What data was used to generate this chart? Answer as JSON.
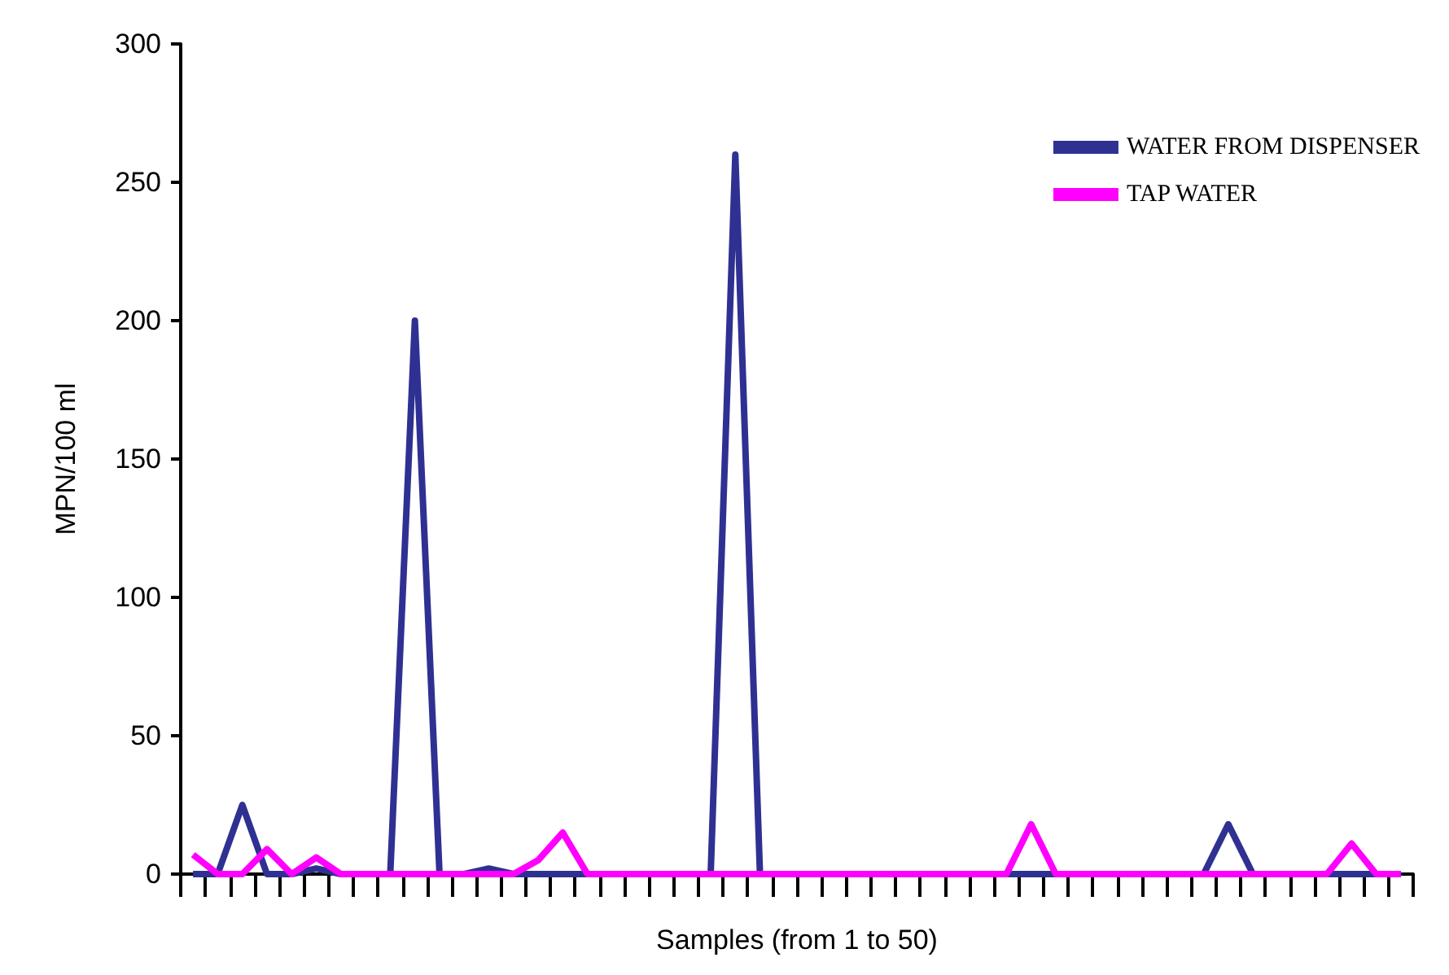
{
  "chart_data": {
    "type": "line",
    "xlabel": "Samples (from 1 to 50)",
    "ylabel": "MPN/100 ml",
    "categories": [
      null,
      null,
      null,
      null,
      null,
      null,
      null,
      null,
      null,
      null,
      null,
      null,
      null,
      null,
      null,
      null,
      null,
      null,
      null,
      null,
      null,
      null,
      null,
      null,
      null,
      null,
      null,
      null,
      null,
      null,
      null,
      null,
      null,
      null,
      null,
      null,
      null,
      null,
      null,
      null,
      null,
      null,
      null,
      null,
      null,
      null,
      null,
      null,
      null,
      null
    ],
    "series": [
      {
        "name": "WATER FROM DISPENSER",
        "color": "#2e3192",
        "values": [
          0,
          0,
          25,
          0,
          0,
          2,
          0,
          0,
          0,
          200,
          0,
          0,
          2,
          0,
          0,
          0,
          0,
          0,
          0,
          0,
          0,
          0,
          260,
          0,
          0,
          0,
          0,
          0,
          0,
          0,
          0,
          0,
          0,
          0,
          0,
          0,
          0,
          0,
          0,
          0,
          0,
          0,
          18,
          0,
          0,
          0,
          0,
          0,
          0,
          0
        ]
      },
      {
        "name": "TAP WATER",
        "color": "#ff00ff",
        "values": [
          7,
          0,
          0,
          9,
          0,
          6,
          0,
          0,
          0,
          0,
          0,
          0,
          0,
          0,
          5,
          15,
          0,
          0,
          0,
          0,
          0,
          0,
          0,
          0,
          0,
          0,
          0,
          0,
          0,
          0,
          0,
          0,
          0,
          0,
          18,
          0,
          0,
          0,
          0,
          0,
          0,
          0,
          0,
          0,
          0,
          0,
          0,
          11,
          0,
          0
        ]
      }
    ],
    "ylim": [
      0,
      300
    ],
    "yticks": [
      0,
      50,
      100,
      150,
      200,
      250,
      300
    ],
    "grid": false,
    "legend": "top right",
    "marker": "none",
    "line_style": "solid"
  }
}
